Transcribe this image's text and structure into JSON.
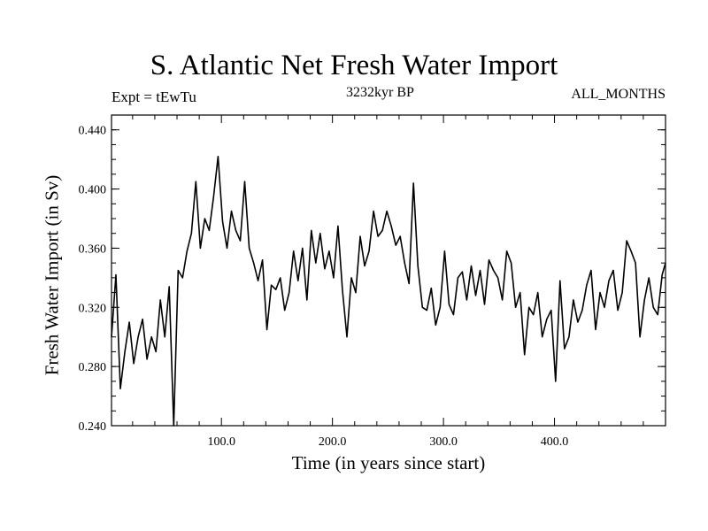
{
  "chart_data": {
    "type": "line",
    "title": "S. Atlantic Net Fresh Water Import",
    "subtitle_left": "Expt = tEwTu",
    "subtitle_center": "3232kyr BP",
    "subtitle_right": "ALL_MONTHS",
    "xlabel": "Time (in years since start)",
    "ylabel": "Fresh Water Import (in Sv)",
    "xlim": [
      1,
      500
    ],
    "ylim": [
      0.24,
      0.45
    ],
    "xticks": [
      100,
      200,
      300,
      400
    ],
    "xtick_labels": [
      "100.0",
      "200.0",
      "300.0",
      "400.0"
    ],
    "yticks": [
      0.24,
      0.28,
      0.32,
      0.36,
      0.4,
      0.44
    ],
    "ytick_labels": [
      "0.240",
      "0.280",
      "0.320",
      "0.360",
      "0.400",
      "0.440"
    ],
    "grid": false,
    "series": [
      {
        "name": "Fresh Water Import",
        "color": "#000000",
        "x": [
          1,
          5,
          9,
          13,
          17,
          21,
          25,
          29,
          33,
          37,
          41,
          45,
          49,
          53,
          57,
          61,
          65,
          69,
          73,
          77,
          81,
          85,
          89,
          93,
          97,
          101,
          105,
          109,
          113,
          117,
          121,
          125,
          129,
          133,
          137,
          141,
          145,
          149,
          153,
          157,
          161,
          165,
          169,
          173,
          177,
          181,
          185,
          189,
          193,
          197,
          201,
          205,
          209,
          213,
          217,
          221,
          225,
          229,
          233,
          237,
          241,
          245,
          249,
          253,
          257,
          261,
          265,
          269,
          273,
          277,
          281,
          285,
          289,
          293,
          297,
          301,
          305,
          309,
          313,
          317,
          321,
          325,
          329,
          333,
          337,
          341,
          345,
          349,
          353,
          357,
          361,
          365,
          369,
          373,
          377,
          381,
          385,
          389,
          393,
          397,
          401,
          405,
          409,
          413,
          417,
          421,
          425,
          429,
          433,
          437,
          441,
          445,
          449,
          453,
          457,
          461,
          465,
          469,
          473,
          477,
          481,
          485,
          489,
          493,
          497,
          500
        ],
        "values": [
          0.3,
          0.342,
          0.265,
          0.29,
          0.31,
          0.282,
          0.3,
          0.312,
          0.285,
          0.3,
          0.29,
          0.325,
          0.3,
          0.334,
          0.24,
          0.345,
          0.34,
          0.358,
          0.37,
          0.405,
          0.36,
          0.38,
          0.372,
          0.395,
          0.422,
          0.378,
          0.36,
          0.385,
          0.372,
          0.365,
          0.405,
          0.36,
          0.35,
          0.338,
          0.352,
          0.305,
          0.335,
          0.332,
          0.34,
          0.318,
          0.33,
          0.358,
          0.338,
          0.36,
          0.325,
          0.372,
          0.35,
          0.37,
          0.346,
          0.358,
          0.34,
          0.375,
          0.332,
          0.3,
          0.34,
          0.33,
          0.368,
          0.348,
          0.358,
          0.385,
          0.368,
          0.372,
          0.385,
          0.375,
          0.362,
          0.368,
          0.35,
          0.336,
          0.404,
          0.348,
          0.32,
          0.318,
          0.333,
          0.308,
          0.32,
          0.358,
          0.322,
          0.315,
          0.34,
          0.344,
          0.325,
          0.348,
          0.328,
          0.345,
          0.322,
          0.352,
          0.345,
          0.34,
          0.325,
          0.358,
          0.35,
          0.32,
          0.33,
          0.288,
          0.32,
          0.315,
          0.33,
          0.3,
          0.312,
          0.318,
          0.27,
          0.338,
          0.292,
          0.3,
          0.325,
          0.31,
          0.318,
          0.335,
          0.345,
          0.305,
          0.33,
          0.32,
          0.338,
          0.345,
          0.318,
          0.33,
          0.365,
          0.358,
          0.35,
          0.3,
          0.325,
          0.34,
          0.32,
          0.315,
          0.342,
          0.35
        ]
      }
    ]
  }
}
